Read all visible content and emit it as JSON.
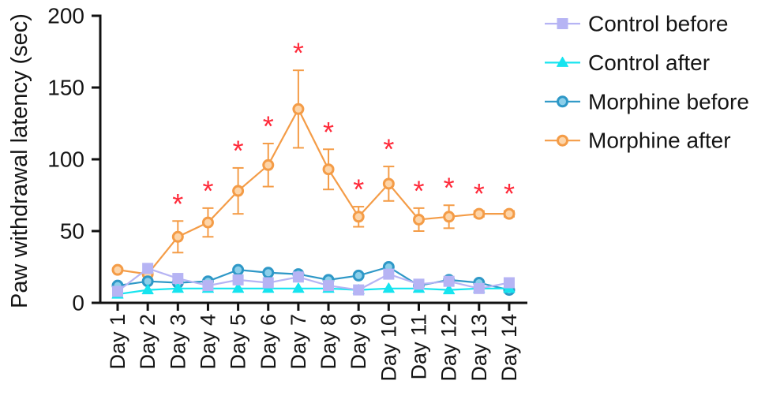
{
  "chart_data": {
    "type": "line",
    "ylabel": "Paw withdrawal latency (sec)",
    "ylim": [
      0,
      200
    ],
    "yticks": [
      0,
      50,
      100,
      150,
      200
    ],
    "categories": [
      "Day 1",
      "Day 2",
      "Day 3",
      "Day 4",
      "Day 5",
      "Day 6",
      "Day 7",
      "Day 8",
      "Day 9",
      "Day 10",
      "Day 11",
      "Day 12",
      "Day 13",
      "Day 14"
    ],
    "series": [
      {
        "name": "Control before",
        "marker": "square",
        "color": "#b6b4f4",
        "fill": "#b6b4f4",
        "values": [
          8,
          24,
          17,
          12,
          16,
          14,
          18,
          12,
          9,
          20,
          13,
          15,
          10,
          14
        ]
      },
      {
        "name": "Control after",
        "marker": "triangle",
        "color": "#16e4ef",
        "fill": "#16e4ef",
        "values": [
          6,
          9,
          10,
          10,
          10,
          10,
          10,
          10,
          9,
          10,
          10,
          9,
          10,
          10
        ]
      },
      {
        "name": "Morphine before",
        "marker": "circle",
        "color": "#2e98c7",
        "fill": "#8ccfea",
        "values": [
          12,
          15,
          14,
          15,
          23,
          21,
          20,
          16,
          19,
          25,
          12,
          16,
          14,
          9
        ]
      },
      {
        "name": "Morphine after",
        "marker": "circle",
        "color": "#f49c47",
        "fill": "#fdd5a9",
        "values": [
          23,
          20,
          46,
          56,
          78,
          96,
          135,
          93,
          60,
          83,
          58,
          60,
          62,
          62
        ],
        "error": [
          1,
          1,
          11,
          10,
          16,
          15,
          27,
          14,
          7,
          12,
          8,
          8,
          2,
          2
        ],
        "significance": [
          "",
          "",
          "*",
          "*",
          "*",
          "*",
          "*",
          "*",
          "*",
          "*",
          "*",
          "*",
          "*",
          "*"
        ],
        "sig_color": "#ff2a3a"
      }
    ],
    "legend": "right",
    "grid": false
  }
}
